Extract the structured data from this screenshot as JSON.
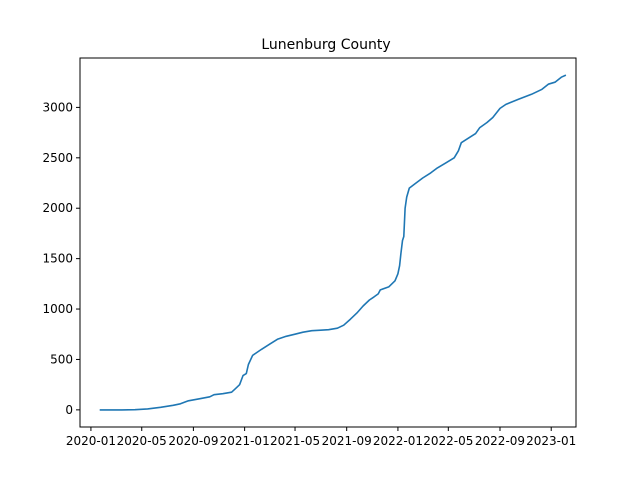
{
  "chart_data": {
    "type": "line",
    "title": "Lunenburg County",
    "xlabel": "",
    "ylabel": "",
    "x_axis_type": "date",
    "xlim": [
      "2019-12-06",
      "2023-03-01"
    ],
    "ylim": [
      -170,
      3490
    ],
    "grid": false,
    "legend": "none",
    "x_ticks": [
      {
        "date": "2020-01-01",
        "label": "2020-01"
      },
      {
        "date": "2020-05-01",
        "label": "2020-05"
      },
      {
        "date": "2020-09-01",
        "label": "2020-09"
      },
      {
        "date": "2021-01-01",
        "label": "2021-01"
      },
      {
        "date": "2021-05-01",
        "label": "2021-05"
      },
      {
        "date": "2021-09-01",
        "label": "2021-09"
      },
      {
        "date": "2022-01-01",
        "label": "2022-01"
      },
      {
        "date": "2022-05-01",
        "label": "2022-05"
      },
      {
        "date": "2022-09-01",
        "label": "2022-09"
      },
      {
        "date": "2023-01-01",
        "label": "2023-01"
      }
    ],
    "y_ticks": [
      {
        "value": 0,
        "label": "0"
      },
      {
        "value": 500,
        "label": "500"
      },
      {
        "value": 1000,
        "label": "1000"
      },
      {
        "value": 1500,
        "label": "1500"
      },
      {
        "value": 2000,
        "label": "2000"
      },
      {
        "value": 2500,
        "label": "2500"
      },
      {
        "value": 3000,
        "label": "3000"
      }
    ],
    "series": [
      {
        "color": "#1f77b4",
        "points": [
          [
            "2020-01-22",
            0
          ],
          [
            "2020-02-15",
            0
          ],
          [
            "2020-03-15",
            0
          ],
          [
            "2020-04-15",
            2
          ],
          [
            "2020-05-15",
            10
          ],
          [
            "2020-06-15",
            25
          ],
          [
            "2020-07-15",
            45
          ],
          [
            "2020-08-01",
            60
          ],
          [
            "2020-08-20",
            90
          ],
          [
            "2020-09-15",
            110
          ],
          [
            "2020-10-10",
            130
          ],
          [
            "2020-10-20",
            150
          ],
          [
            "2020-11-10",
            160
          ],
          [
            "2020-12-01",
            175
          ],
          [
            "2020-12-10",
            210
          ],
          [
            "2020-12-20",
            250
          ],
          [
            "2020-12-28",
            340
          ],
          [
            "2021-01-05",
            360
          ],
          [
            "2021-01-10",
            450
          ],
          [
            "2021-01-20",
            540
          ],
          [
            "2021-02-10",
            600
          ],
          [
            "2021-03-01",
            650
          ],
          [
            "2021-03-20",
            700
          ],
          [
            "2021-04-10",
            730
          ],
          [
            "2021-05-01",
            750
          ],
          [
            "2021-05-20",
            770
          ],
          [
            "2021-06-10",
            785
          ],
          [
            "2021-07-01",
            790
          ],
          [
            "2021-07-20",
            795
          ],
          [
            "2021-08-10",
            810
          ],
          [
            "2021-08-25",
            840
          ],
          [
            "2021-09-10",
            900
          ],
          [
            "2021-09-25",
            960
          ],
          [
            "2021-10-10",
            1030
          ],
          [
            "2021-10-25",
            1090
          ],
          [
            "2021-11-05",
            1120
          ],
          [
            "2021-11-15",
            1150
          ],
          [
            "2021-11-20",
            1190
          ],
          [
            "2021-12-10",
            1220
          ],
          [
            "2021-12-25",
            1280
          ],
          [
            "2022-01-01",
            1350
          ],
          [
            "2022-01-05",
            1430
          ],
          [
            "2022-01-08",
            1550
          ],
          [
            "2022-01-12",
            1680
          ],
          [
            "2022-01-15",
            1720
          ],
          [
            "2022-01-18",
            2000
          ],
          [
            "2022-01-22",
            2110
          ],
          [
            "2022-01-28",
            2200
          ],
          [
            "2022-02-10",
            2240
          ],
          [
            "2022-03-01",
            2300
          ],
          [
            "2022-03-20",
            2350
          ],
          [
            "2022-04-05",
            2400
          ],
          [
            "2022-04-25",
            2450
          ],
          [
            "2022-05-15",
            2500
          ],
          [
            "2022-05-25",
            2570
          ],
          [
            "2022-06-01",
            2650
          ],
          [
            "2022-06-20",
            2700
          ],
          [
            "2022-07-05",
            2740
          ],
          [
            "2022-07-15",
            2800
          ],
          [
            "2022-08-01",
            2850
          ],
          [
            "2022-08-15",
            2900
          ],
          [
            "2022-09-01",
            2990
          ],
          [
            "2022-09-15",
            3030
          ],
          [
            "2022-10-15",
            3080
          ],
          [
            "2022-11-15",
            3130
          ],
          [
            "2022-12-10",
            3180
          ],
          [
            "2022-12-25",
            3230
          ],
          [
            "2023-01-10",
            3250
          ],
          [
            "2023-01-25",
            3300
          ],
          [
            "2023-02-05",
            3320
          ]
        ]
      }
    ]
  }
}
